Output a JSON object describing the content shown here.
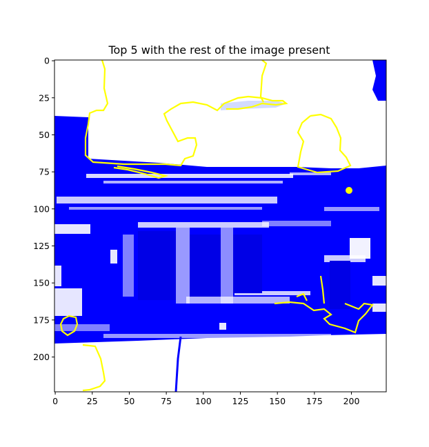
{
  "title": "Top 5 with the rest of the image present",
  "axes": {
    "x_ticks": [
      0,
      25,
      50,
      75,
      100,
      125,
      150,
      175,
      200
    ],
    "y_ticks": [
      0,
      25,
      50,
      75,
      100,
      125,
      150,
      175,
      200
    ],
    "x_range": [
      0,
      224
    ],
    "y_range": [
      0,
      224
    ],
    "y_inverted": true
  },
  "image": {
    "description_colors": {
      "mask": "#0000ff",
      "background": "#ffffff",
      "contour": "#ffff00"
    }
  }
}
